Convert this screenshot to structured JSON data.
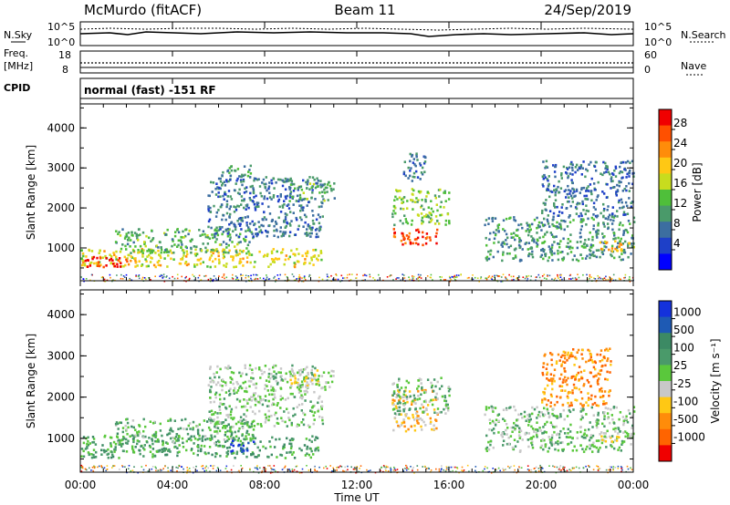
{
  "header": {
    "station": "McMurdo (fitACF)",
    "beam": "Beam 11",
    "date": "24/Sep/2019"
  },
  "strip_panels": {
    "nsky_label": "N.Sky",
    "nsky_ticks": [
      "10^5",
      "10^0"
    ],
    "nsearch_label": "N.Search",
    "nsearch_ticks": [
      "10^5",
      "10^0"
    ],
    "freq_label_1": "Freq.",
    "freq_label_2": "[MHz]",
    "freq_ticks": [
      "18",
      "8"
    ],
    "nave_label": "Nave",
    "nave_ticks": [
      "60",
      "0"
    ],
    "cpid_label": "CPID",
    "cpid_text": "normal (fast) -151 RF"
  },
  "x_axis": {
    "label": "Time UT",
    "ticks": [
      "00:00",
      "04:00",
      "08:00",
      "12:00",
      "16:00",
      "20:00",
      "00:00"
    ]
  },
  "power_panel": {
    "ylabel": "Slant Range [km]",
    "yticks": [
      "4000",
      "3000",
      "2000",
      "1000"
    ],
    "colorbar_label": "Power [dB]",
    "colorbar_ticks": [
      "28",
      "24",
      "20",
      "16",
      "12",
      "8",
      "4"
    ],
    "colorbar_colors": [
      "#0000ff",
      "#1e40c8",
      "#3c6ea0",
      "#4a9a6a",
      "#4fbf3a",
      "#c8dc1e",
      "#ffc814",
      "#ff8c0a",
      "#ff5000",
      "#f00000"
    ]
  },
  "velocity_panel": {
    "ylabel": "Slant Range [km]",
    "yticks": [
      "4000",
      "3000",
      "2000",
      "1000"
    ],
    "colorbar_label": "Velocity [m s⁻¹]",
    "colorbar_ticks": [
      "1000",
      "500",
      "100",
      "25",
      "-25",
      "-100",
      "-500",
      "-1000"
    ],
    "colorbar_colors": [
      "#1432dc",
      "#1e5ab4",
      "#3c8a64",
      "#4a9a6a",
      "#5ac83c",
      "#c8c8c8",
      "#ffc814",
      "#ff8c0a",
      "#ff6400",
      "#f00000"
    ]
  },
  "chart_data": [
    {
      "type": "heatmap",
      "title": "Power",
      "xlabel": "Time UT",
      "ylabel": "Slant Range [km]",
      "xlim_hours": [
        0,
        24
      ],
      "ylim_km": [
        180,
        4600
      ],
      "colorbar_range_dB": [
        0,
        30
      ],
      "scatter_regions": [
        {
          "t_start": 0.0,
          "t_end": 10.5,
          "r_start": 550,
          "r_end": 1000,
          "value": 18
        },
        {
          "t_start": 0.0,
          "t_end": 2.0,
          "r_start": 550,
          "r_end": 800,
          "value": 28
        },
        {
          "t_start": 1.5,
          "t_end": 7.5,
          "r_start": 900,
          "r_end": 1500,
          "value": 12
        },
        {
          "t_start": 5.5,
          "t_end": 10.5,
          "r_start": 1300,
          "r_end": 2800,
          "value": 8
        },
        {
          "t_start": 6.0,
          "t_end": 7.5,
          "r_start": 2800,
          "r_end": 3100,
          "value": 10
        },
        {
          "t_start": 9.0,
          "t_end": 11.0,
          "r_start": 2200,
          "r_end": 2700,
          "value": 12
        },
        {
          "t_start": 13.5,
          "t_end": 15.5,
          "r_start": 1100,
          "r_end": 1500,
          "value": 26
        },
        {
          "t_start": 13.5,
          "t_end": 16.0,
          "r_start": 1600,
          "r_end": 2500,
          "value": 14
        },
        {
          "t_start": 14.0,
          "t_end": 15.0,
          "r_start": 2700,
          "r_end": 3400,
          "value": 8
        },
        {
          "t_start": 17.5,
          "t_end": 24.0,
          "r_start": 700,
          "r_end": 1800,
          "value": 10
        },
        {
          "t_start": 20.0,
          "t_end": 24.0,
          "r_start": 1800,
          "r_end": 3200,
          "value": 8
        },
        {
          "t_start": 22.5,
          "t_end": 24.0,
          "r_start": 950,
          "r_end": 1200,
          "value": 20
        }
      ]
    },
    {
      "type": "heatmap",
      "title": "Velocity",
      "xlabel": "Time UT",
      "ylabel": "Slant Range [km]",
      "xlim_hours": [
        0,
        24
      ],
      "ylim_km": [
        180,
        4600
      ],
      "colorbar_range_ms": [
        -1000,
        1000
      ],
      "scatter_regions": [
        {
          "t_start": 0.0,
          "t_end": 10.5,
          "r_start": 550,
          "r_end": 1100,
          "value": 300
        },
        {
          "t_start": 6.5,
          "t_end": 7.5,
          "r_start": 700,
          "r_end": 1000,
          "value": 900
        },
        {
          "t_start": 1.5,
          "t_end": 7.5,
          "r_start": 900,
          "r_end": 1500,
          "value": 200
        },
        {
          "t_start": 5.5,
          "t_end": 10.5,
          "r_start": 1300,
          "r_end": 2800,
          "value": 50
        },
        {
          "t_start": 9.0,
          "t_end": 11.0,
          "r_start": 2200,
          "r_end": 2700,
          "value": -80
        },
        {
          "t_start": 13.5,
          "t_end": 15.5,
          "r_start": 1200,
          "r_end": 2200,
          "value": -300
        },
        {
          "t_start": 13.5,
          "t_end": 16.0,
          "r_start": 1600,
          "r_end": 2500,
          "value": 150
        },
        {
          "t_start": 17.5,
          "t_end": 24.0,
          "r_start": 700,
          "r_end": 1800,
          "value": 100
        },
        {
          "t_start": 20.0,
          "t_end": 23.0,
          "r_start": 1800,
          "r_end": 3200,
          "value": -500
        },
        {
          "t_start": 22.5,
          "t_end": 24.0,
          "r_start": 950,
          "r_end": 1200,
          "value": -120
        }
      ]
    }
  ]
}
